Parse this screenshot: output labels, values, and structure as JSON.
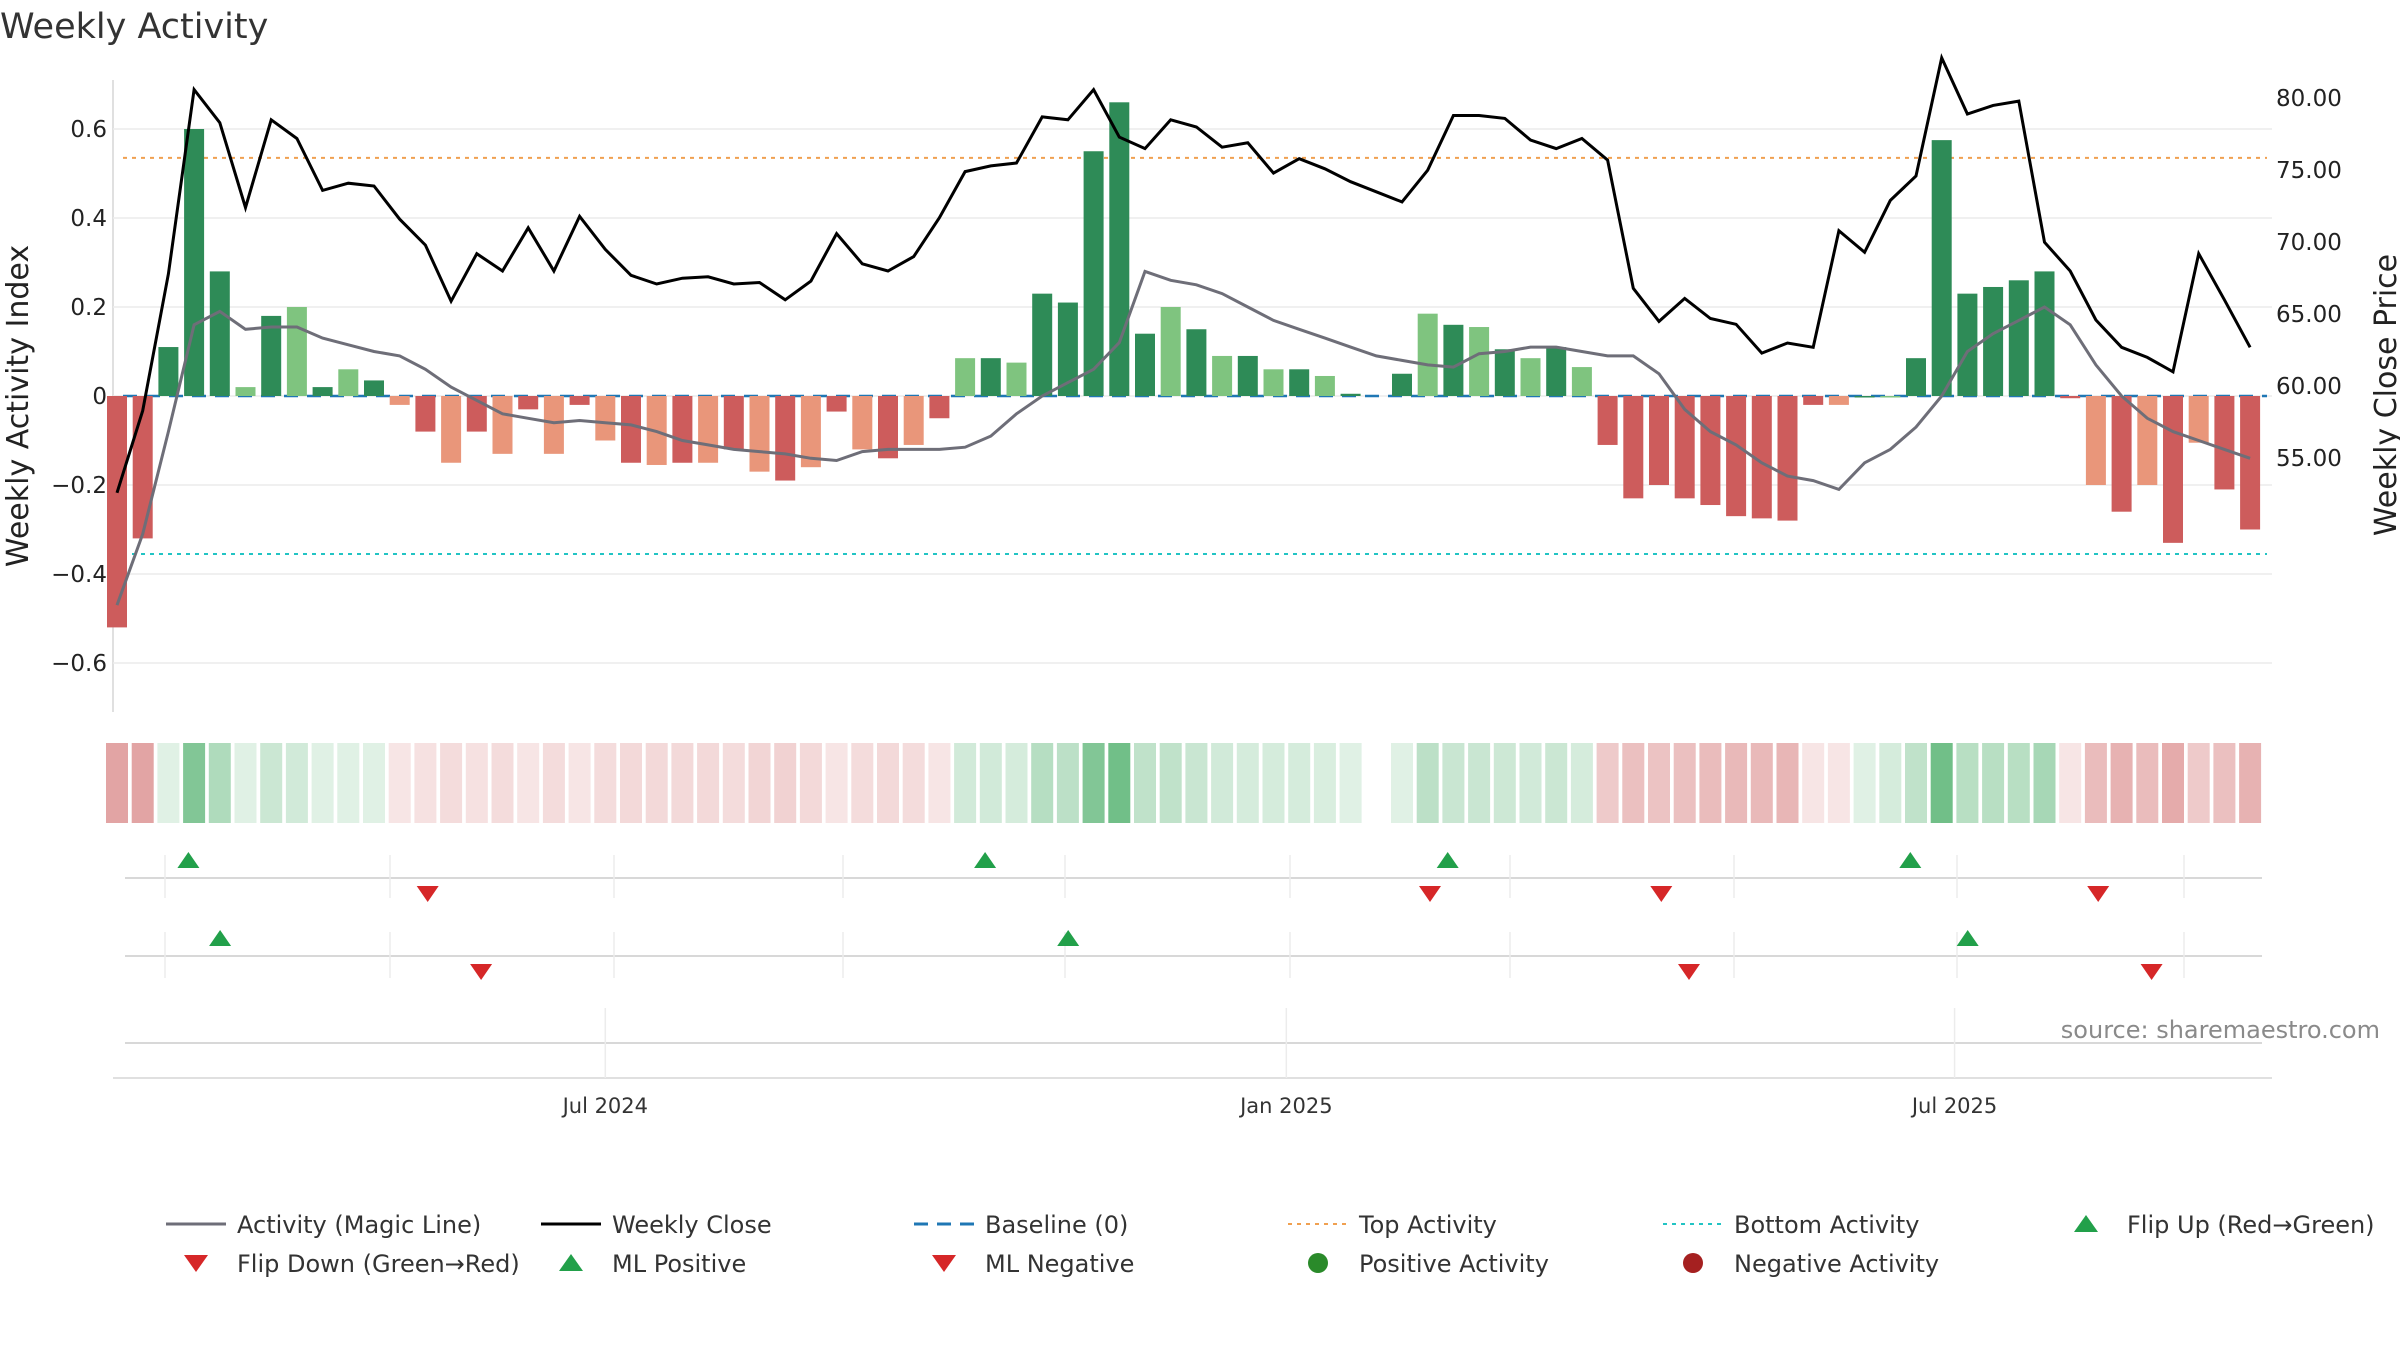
{
  "colors": {
    "pos_strong": "#2e8b57",
    "pos_weak": "#7fc47f",
    "neg_strong": "#cd5c5c",
    "neg_weak": "#e9967a",
    "magic_line": "#6e6e78",
    "close_line": "#000000",
    "baseline": "#1f77b4",
    "top_line": "#f0a050",
    "bottom_line": "#22c4c4",
    "flip_up": "#22a04a",
    "flip_down": "#d62728",
    "pos_dot": "#2a8a2a",
    "neg_dot": "#a52020"
  },
  "chart_data": {
    "type": "bar",
    "title": "Weekly Activity",
    "ylabel": "Weekly Activity Index",
    "y2label": "Weekly Close Price",
    "ylim": [
      -0.7,
      0.7
    ],
    "y2lim": [
      51.5,
      85.5
    ],
    "yticks": [
      0.6,
      0.4,
      0.2,
      0,
      -0.2,
      -0.4,
      -0.6
    ],
    "ytick_labels": [
      "0.6",
      "0.4",
      "0.2",
      "0",
      "−0.2",
      "−0.4",
      "−0.6"
    ],
    "y2ticks": [
      80,
      75,
      70,
      65,
      60,
      55
    ],
    "y2tick_labels": [
      "80.00",
      "75.00",
      "70.00",
      "65.00",
      "60.00",
      "55.00"
    ],
    "date_ticks": [
      {
        "index": 19,
        "label": "Jul 2024"
      },
      {
        "index": 45.5,
        "label": "Jan 2025"
      },
      {
        "index": 71.5,
        "label": "Jul 2025"
      }
    ],
    "top_activity": 0.535,
    "bottom_activity": -0.355,
    "baseline": 0,
    "series": [
      {
        "name": "Weekly Activity Index",
        "values": [
          -0.52,
          -0.32,
          0.11,
          0.6,
          0.28,
          0.02,
          0.18,
          0.2,
          0.02,
          0.06,
          0.035,
          -0.02,
          -0.08,
          -0.15,
          -0.08,
          -0.13,
          -0.03,
          -0.13,
          -0.02,
          -0.1,
          -0.15,
          -0.155,
          -0.15,
          -0.15,
          -0.12,
          -0.17,
          -0.19,
          -0.16,
          -0.035,
          -0.12,
          -0.14,
          -0.11,
          -0.05,
          0.085,
          0.085,
          0.075,
          0.23,
          0.21,
          0.55,
          0.66,
          0.14,
          0.2,
          0.15,
          0.09,
          0.09,
          0.06,
          0.06,
          0.045,
          0.005,
          null,
          0.05,
          0.185,
          0.16,
          0.155,
          0.105,
          0.085,
          0.11,
          0.065,
          -0.11,
          -0.23,
          -0.2,
          -0.23,
          -0.245,
          -0.27,
          -0.275,
          -0.28,
          -0.02,
          -0.02,
          0.0,
          0.0,
          0.085,
          0.575,
          0.23,
          0.245,
          0.26,
          0.28,
          -0.005,
          -0.2,
          -0.26,
          -0.2,
          -0.33,
          -0.105,
          -0.21,
          -0.3
        ]
      },
      {
        "name": "Activity (Magic Line)",
        "values": [
          -0.47,
          -0.31,
          -0.08,
          0.16,
          0.19,
          0.15,
          0.155,
          0.155,
          0.13,
          0.115,
          0.1,
          0.09,
          0.06,
          0.02,
          -0.01,
          -0.04,
          -0.05,
          -0.06,
          -0.055,
          -0.06,
          -0.065,
          -0.08,
          -0.1,
          -0.11,
          -0.12,
          -0.125,
          -0.13,
          -0.14,
          -0.145,
          -0.125,
          -0.12,
          -0.12,
          -0.12,
          -0.115,
          -0.09,
          -0.04,
          0.0,
          0.03,
          0.06,
          0.12,
          0.28,
          0.26,
          0.25,
          0.23,
          0.2,
          0.17,
          0.15,
          0.13,
          0.11,
          0.09,
          0.08,
          0.07,
          0.065,
          0.095,
          0.1,
          0.11,
          0.11,
          0.1,
          0.09,
          0.09,
          0.05,
          -0.03,
          -0.08,
          -0.11,
          -0.15,
          -0.18,
          -0.19,
          -0.21,
          -0.15,
          -0.12,
          -0.07,
          0.0,
          0.1,
          0.14,
          0.17,
          0.2,
          0.16,
          0.07,
          0.0,
          -0.05,
          -0.08,
          -0.1,
          -0.12,
          -0.14
        ]
      },
      {
        "name": "Weekly Close",
        "values": [
          52.6,
          58.3,
          67.8,
          80.6,
          78.3,
          72.4,
          78.5,
          77.2,
          73.6,
          74.1,
          73.9,
          71.6,
          69.8,
          65.9,
          69.2,
          68.0,
          71.0,
          68.0,
          71.8,
          69.5,
          67.7,
          67.1,
          67.5,
          67.6,
          67.1,
          67.2,
          66.0,
          67.3,
          70.6,
          68.5,
          68.0,
          69.0,
          71.7,
          74.9,
          75.3,
          75.5,
          78.7,
          78.5,
          80.6,
          77.3,
          76.5,
          78.5,
          78.0,
          76.6,
          76.9,
          74.8,
          75.8,
          75.1,
          74.2,
          73.5,
          72.8,
          75.0,
          78.8,
          78.8,
          78.6,
          77.1,
          76.5,
          77.2,
          75.7,
          66.8,
          64.5,
          66.1,
          64.7,
          64.3,
          62.3,
          63.0,
          62.7,
          70.8,
          69.3,
          72.9,
          74.6,
          82.8,
          78.9,
          79.5,
          79.8,
          70.0,
          68.0,
          64.6,
          62.7,
          62.0,
          61.0,
          69.2,
          66.0,
          62.7
        ]
      },
      {
        "name": "Baseline (0)",
        "values": [
          0
        ]
      }
    ],
    "strip_values": [
      0.52,
      0.52,
      0.15,
      0.6,
      0.38,
      0.12,
      0.25,
      0.22,
      0.12,
      0.15,
      0.12,
      0.12,
      0.17,
      0.2,
      0.17,
      0.2,
      0.15,
      0.2,
      0.14,
      0.2,
      0.22,
      0.22,
      0.22,
      0.22,
      0.2,
      0.24,
      0.26,
      0.22,
      0.12,
      0.2,
      0.22,
      0.2,
      0.15,
      0.22,
      0.22,
      0.2,
      0.35,
      0.32,
      0.6,
      0.68,
      0.3,
      0.3,
      0.26,
      0.22,
      0.2,
      0.2,
      0.2,
      0.18,
      0.15,
      null,
      0.1,
      0.32,
      0.26,
      0.26,
      0.24,
      0.22,
      0.25,
      0.2,
      0.3,
      0.36,
      0.34,
      0.36,
      0.38,
      0.4,
      0.4,
      0.42,
      0.15,
      0.12,
      0.15,
      0.2,
      0.3,
      0.68,
      0.34,
      0.34,
      0.34,
      0.42,
      0.12,
      0.38,
      0.44,
      0.38,
      0.48,
      0.3,
      0.36,
      0.44
    ],
    "flip_up_ml": [
      2,
      33,
      51,
      69
    ],
    "flip_down_ml": [
      11,
      50,
      59,
      76
    ],
    "flip_up_activity": [
      3,
      36,
      71
    ],
    "flip_down_activity": [
      13,
      60,
      78
    ],
    "legend": [
      {
        "label": "Activity (Magic Line)",
        "kind": "line",
        "style": "magic"
      },
      {
        "label": "Weekly Close",
        "kind": "line",
        "style": "close"
      },
      {
        "label": "Baseline (0)",
        "kind": "line",
        "style": "baseline"
      },
      {
        "label": "Top Activity",
        "kind": "line",
        "style": "top"
      },
      {
        "label": "Bottom Activity",
        "kind": "line",
        "style": "bottom"
      },
      {
        "label": "Flip Up (Red→Green)",
        "kind": "marker",
        "style": "up"
      },
      {
        "label": "Flip Down (Green→Red)",
        "kind": "marker",
        "style": "down"
      },
      {
        "label": "ML Positive",
        "kind": "marker",
        "style": "up"
      },
      {
        "label": "ML Negative",
        "kind": "marker",
        "style": "down"
      },
      {
        "label": "Positive Activity",
        "kind": "marker",
        "style": "posdot"
      },
      {
        "label": "Negative Activity",
        "kind": "marker",
        "style": "negdot"
      }
    ],
    "source": "source: sharemaestro.com"
  }
}
